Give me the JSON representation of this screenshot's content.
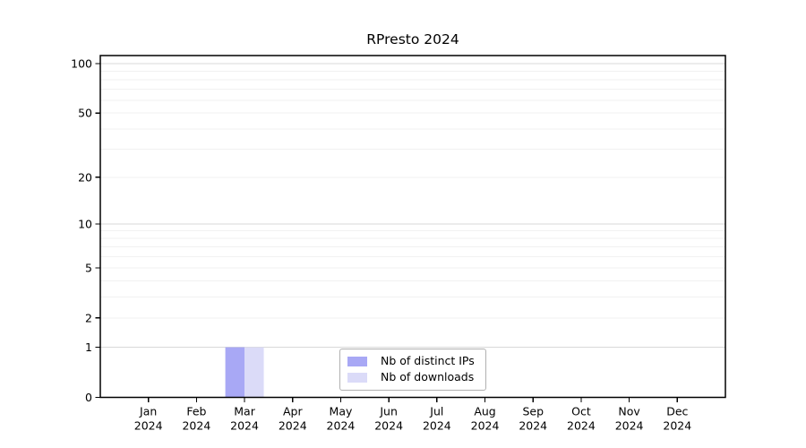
{
  "page": {
    "background": "#ffffff"
  },
  "chart_data": {
    "type": "bar",
    "title": "RPresto 2024",
    "categories": [
      "Jan 2024",
      "Feb 2024",
      "Mar 2024",
      "Apr 2024",
      "May 2024",
      "Jun 2024",
      "Jul 2024",
      "Aug 2024",
      "Sep 2024",
      "Oct 2024",
      "Nov 2024",
      "Dec 2024"
    ],
    "series": [
      {
        "name": "Nb of distinct IPs",
        "color": "#a8a8f5",
        "values": [
          0,
          0,
          1,
          0,
          0,
          0,
          0,
          0,
          0,
          0,
          0,
          0
        ]
      },
      {
        "name": "Nb of downloads",
        "color": "#dbdbf8",
        "values": [
          0,
          0,
          1,
          0,
          0,
          0,
          0,
          0,
          0,
          0,
          0,
          0
        ]
      }
    ],
    "xlabel": "",
    "ylabel": "",
    "yscale": "log1p",
    "ylim": [
      0,
      112
    ],
    "yticks": [
      0,
      1,
      2,
      5,
      10,
      20,
      50,
      100
    ],
    "major_gridlines": [
      1,
      10,
      100
    ],
    "minor_gridlines": [
      2,
      3,
      4,
      5,
      6,
      7,
      8,
      9,
      20,
      30,
      40,
      50,
      60,
      70,
      80,
      90
    ],
    "grid": true,
    "legend": {
      "position": "inside-bottom-center",
      "items": [
        "Nb of distinct IPs",
        "Nb of downloads"
      ]
    },
    "colors": {
      "axis": "#000000",
      "text": "#000000",
      "grid_major": "#d8d8d8",
      "grid_minor": "#f1f1f1",
      "legend_border": "#b0b0b0",
      "background": "#ffffff"
    }
  }
}
